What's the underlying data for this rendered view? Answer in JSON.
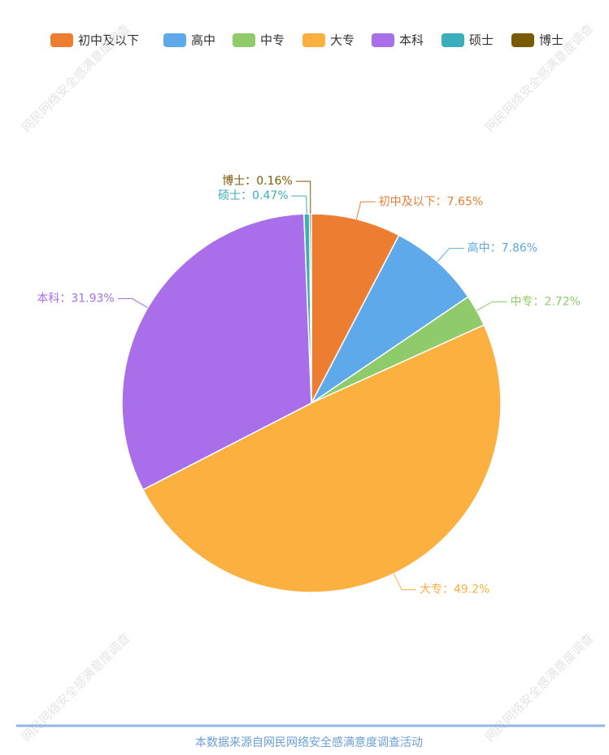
{
  "chart_data": {
    "type": "pie",
    "categories": [
      "初中及以下",
      "高中",
      "中专",
      "大专",
      "本科",
      "硕士",
      "博士"
    ],
    "values": [
      7.65,
      7.86,
      2.72,
      49.2,
      31.93,
      0.47,
      0.16
    ],
    "value_labels": [
      "初中及以下：7.65%",
      "高中：7.86%",
      "中专：2.72%",
      "大专：49.2%",
      "本科：31.93%",
      "硕士：0.47%",
      "博士：0.16%"
    ],
    "colors": [
      "#ed7d31",
      "#5ea9ea",
      "#8fcb6b",
      "#fbb040",
      "#a96ee9",
      "#3aaebb",
      "#7a5a00"
    ],
    "legend": "top",
    "watermark": "网民网络安全感满意度调查",
    "source": "本数据来源自网民网络安全感满意度调查活动"
  }
}
